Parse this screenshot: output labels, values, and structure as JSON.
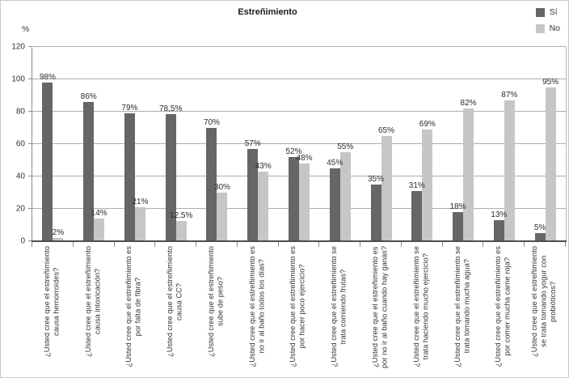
{
  "figure": {
    "title": "Estreñimiento",
    "y_axis_unit": "%"
  },
  "chart_data": {
    "type": "bar",
    "title": "Estreñimiento",
    "ylabel": "%",
    "ylim": [
      0,
      120
    ],
    "yticks": [
      0,
      20,
      40,
      60,
      80,
      100,
      120
    ],
    "grid": true,
    "legend_position": "top-right",
    "categories": [
      "¿Usted cree que el estreñimiento\ncausa hemorroides?",
      "¿Usted cree que el estreñimiento\ncausa intoxicación?",
      "¿Usted cree que el estreñimiento es\npor falta de fibra?",
      "¿Usted cree que el estreñimiento\ncausa CC?",
      "¿Usted cree que el estreñimiento\nsube de peso?",
      "¿Usted cree que el estreñimiento es\nno ir al baño todos los días?",
      "¿Usted cree que el estreñimiento es\npor hacer poco ejercicio?",
      "¿Usted cree que el estreñimiento se\ntrata comiendo frutas?",
      "¿Usted cree que el estreñimiento es\npor no ir al baño cuando hay ganas?",
      "¿Usted cree que el estreñimiento se\ntrata haciendo mucho ejercicio?",
      "¿Usted cree que el estreñimiento se\ntrata tomando mucha agua?",
      "¿Usted cree que el estreñimiento es\npor comer mucha carne roja?",
      "¿Usted cree que el estreñimiento\nse trata tomando yogur con\nprobióticos?"
    ],
    "series": [
      {
        "name": "Sí",
        "color": "#666666",
        "values": [
          98,
          86,
          79,
          78.5,
          70,
          57,
          52,
          45,
          35,
          31,
          18,
          13,
          5
        ],
        "labels": [
          "98%",
          "86%",
          "79%",
          "78,5%",
          "70%",
          "57%",
          "52%",
          "45%",
          "35%",
          "31%",
          "18%",
          "13%",
          "5%"
        ]
      },
      {
        "name": "No",
        "color": "#c6c6c6",
        "values": [
          2,
          14,
          21,
          12.5,
          30,
          43,
          48,
          55,
          65,
          69,
          82,
          87,
          95
        ],
        "labels": [
          "2%",
          "14%",
          "21%",
          "12,5%",
          "30%",
          "43%",
          "48%",
          "55%",
          "65%",
          "69%",
          "82%",
          "87%",
          "95%"
        ]
      }
    ]
  }
}
